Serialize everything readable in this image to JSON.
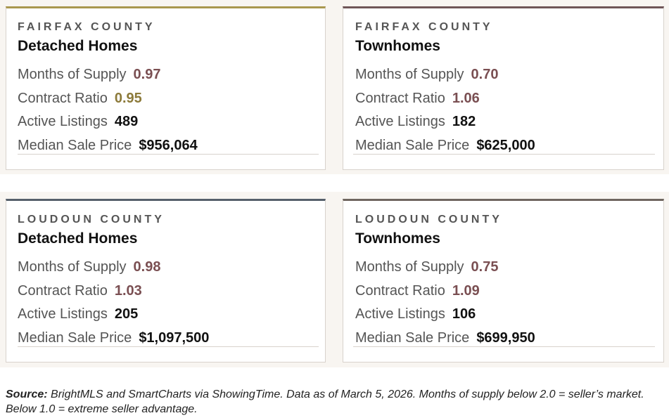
{
  "colors": {
    "background_band": "#f8f5f1",
    "accent_gold": "#a9974e",
    "accent_plum": "#6f5557",
    "accent_slate": "#56606b",
    "accent_brown": "#6f6660",
    "value_plum": "#7a4f52",
    "value_gold": "#8c7a3a"
  },
  "cards": [
    {
      "county": "FAIRFAX COUNTY",
      "type": "Detached Homes",
      "accent": "#a9974e",
      "metrics": [
        {
          "label": "Months of Supply",
          "value": "0.97",
          "tone": "plum"
        },
        {
          "label": "Contract Ratio",
          "value": "0.95",
          "tone": "gold"
        },
        {
          "label": "Active Listings",
          "value": "489",
          "tone": "dark"
        },
        {
          "label": "Median Sale Price",
          "value": "$956,064",
          "tone": "dark"
        }
      ]
    },
    {
      "county": "FAIRFAX COUNTY",
      "type": "Townhomes",
      "accent": "#6f5557",
      "metrics": [
        {
          "label": "Months of Supply",
          "value": "0.70",
          "tone": "plum"
        },
        {
          "label": "Contract Ratio",
          "value": "1.06",
          "tone": "plum"
        },
        {
          "label": "Active Listings",
          "value": "182",
          "tone": "dark"
        },
        {
          "label": "Median Sale Price",
          "value": "$625,000",
          "tone": "dark"
        }
      ]
    },
    {
      "county": "LOUDOUN COUNTY",
      "type": "Detached Homes",
      "accent": "#56606b",
      "metrics": [
        {
          "label": "Months of Supply",
          "value": "0.98",
          "tone": "plum"
        },
        {
          "label": "Contract Ratio",
          "value": "1.03",
          "tone": "plum"
        },
        {
          "label": "Active Listings",
          "value": "205",
          "tone": "dark"
        },
        {
          "label": "Median Sale Price",
          "value": "$1,097,500",
          "tone": "dark"
        }
      ]
    },
    {
      "county": "LOUDOUN COUNTY",
      "type": "Townhomes",
      "accent": "#6f6660",
      "metrics": [
        {
          "label": "Months of Supply",
          "value": "0.75",
          "tone": "plum"
        },
        {
          "label": "Contract Ratio",
          "value": "1.09",
          "tone": "plum"
        },
        {
          "label": "Active Listings",
          "value": "106",
          "tone": "dark"
        },
        {
          "label": "Median Sale Price",
          "value": "$699,950",
          "tone": "dark"
        }
      ]
    }
  ],
  "source": {
    "label": "Source:",
    "text": " BrightMLS and SmartCharts via ShowingTime. Data as of March 5, 2026. Months of supply below 2.0 = seller’s market. Below 1.0 = extreme seller advantage."
  }
}
